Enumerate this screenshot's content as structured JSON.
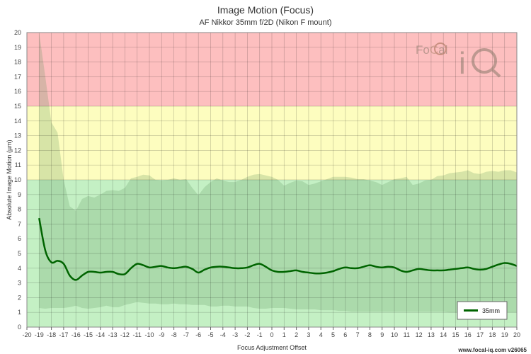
{
  "chart_data": {
    "type": "line",
    "title": "Image Motion (Focus)",
    "subtitle": "AF Nikkor 35mm f/2D (Nikon F mount)",
    "xlabel": "Focus Adjustment Offset",
    "ylabel": "Absolute Image Motion (µm)",
    "xlim": [
      -20,
      20
    ],
    "ylim": [
      0,
      20
    ],
    "grid": true,
    "legend_position": "bottom-right",
    "zones": [
      {
        "from": 0,
        "to": 10,
        "color": "#c4f0c4"
      },
      {
        "from": 10,
        "to": 15,
        "color": "#fdfdbf"
      },
      {
        "from": 15,
        "to": 20,
        "color": "#fdbfbf"
      }
    ],
    "x_ticks": [
      -20,
      -19,
      -18,
      -17,
      -16,
      -15,
      -14,
      -13,
      -12,
      -11,
      -10,
      -9,
      -8,
      -7,
      -6,
      -5,
      -4,
      -3,
      -2,
      -1,
      0,
      1,
      2,
      3,
      4,
      5,
      6,
      7,
      8,
      9,
      10,
      11,
      12,
      13,
      14,
      15,
      16,
      17,
      18,
      19,
      20
    ],
    "y_ticks": [
      0,
      1,
      2,
      3,
      4,
      5,
      6,
      7,
      8,
      9,
      10,
      11,
      12,
      13,
      14,
      15,
      16,
      17,
      18,
      19,
      20
    ],
    "series": [
      {
        "name": "35mm",
        "color": "#006400",
        "x": [
          -19,
          -18.5,
          -18,
          -17.5,
          -17,
          -16.5,
          -16,
          -15.5,
          -15,
          -14.5,
          -14,
          -13.5,
          -13,
          -12.5,
          -12,
          -11.5,
          -11,
          -10.5,
          -10,
          -9.5,
          -9,
          -8.5,
          -8,
          -7.5,
          -7,
          -6.5,
          -6,
          -5.5,
          -5,
          -4.5,
          -4,
          -3.5,
          -3,
          -2.5,
          -2,
          -1.5,
          -1,
          -0.5,
          0,
          0.5,
          1,
          1.5,
          2,
          2.5,
          3,
          3.5,
          4,
          4.5,
          5,
          5.5,
          6,
          6.5,
          7,
          7.5,
          8,
          8.5,
          9,
          9.5,
          10,
          10.5,
          11,
          11.5,
          12,
          12.5,
          13,
          13.5,
          14,
          14.5,
          15,
          15.5,
          16,
          16.5,
          17,
          17.5,
          18,
          18.5,
          19,
          19.5,
          20
        ],
        "values": [
          7.4,
          5.2,
          4.4,
          4.5,
          4.3,
          3.5,
          3.2,
          3.5,
          3.75,
          3.75,
          3.7,
          3.75,
          3.75,
          3.6,
          3.6,
          4.0,
          4.3,
          4.2,
          4.05,
          4.1,
          4.15,
          4.05,
          4.0,
          4.05,
          4.1,
          3.95,
          3.7,
          3.9,
          4.05,
          4.1,
          4.1,
          4.05,
          4.0,
          4.0,
          4.05,
          4.2,
          4.3,
          4.1,
          3.85,
          3.75,
          3.75,
          3.8,
          3.85,
          3.75,
          3.7,
          3.65,
          3.65,
          3.7,
          3.8,
          3.95,
          4.05,
          4.0,
          4.0,
          4.1,
          4.2,
          4.1,
          4.05,
          4.1,
          4.05,
          3.85,
          3.75,
          3.85,
          3.95,
          3.9,
          3.85,
          3.85,
          3.85,
          3.9,
          3.95,
          4.0,
          4.05,
          3.95,
          3.9,
          3.95,
          4.1,
          4.25,
          4.35,
          4.3,
          4.15
        ],
        "band_upper": [
          20,
          17,
          13.9,
          13.2,
          10,
          8.2,
          7.9,
          8.7,
          8.9,
          8.8,
          9.0,
          9.25,
          9.3,
          9.25,
          9.45,
          10.1,
          10.2,
          10.35,
          10.3,
          10.0,
          9.95,
          10.0,
          10.1,
          10.0,
          10.05,
          9.45,
          8.95,
          9.5,
          9.85,
          10.1,
          9.95,
          9.85,
          9.85,
          10.0,
          10.2,
          10.35,
          10.4,
          10.3,
          10.2,
          10.0,
          9.6,
          9.8,
          9.95,
          9.9,
          9.65,
          9.75,
          9.9,
          10.05,
          10.2,
          10.2,
          10.2,
          10.15,
          10.05,
          10.05,
          9.95,
          9.85,
          9.65,
          9.85,
          10.05,
          10.1,
          10.2,
          9.65,
          9.75,
          9.95,
          10.0,
          10.25,
          10.3,
          10.45,
          10.5,
          10.55,
          10.65,
          10.45,
          10.4,
          10.55,
          10.6,
          10.55,
          10.65,
          10.65,
          10.5
        ],
        "band_lower": [
          1.3,
          1.25,
          1.3,
          1.3,
          1.3,
          1.35,
          1.45,
          1.3,
          1.25,
          1.3,
          1.35,
          1.45,
          1.35,
          1.35,
          1.5,
          1.6,
          1.7,
          1.65,
          1.6,
          1.6,
          1.55,
          1.55,
          1.6,
          1.55,
          1.55,
          1.5,
          1.5,
          1.5,
          1.4,
          1.4,
          1.45,
          1.45,
          1.4,
          1.4,
          1.4,
          1.3,
          1.25,
          1.25,
          1.3,
          1.3,
          1.3,
          1.25,
          1.2,
          1.2,
          1.2,
          1.2,
          1.15,
          1.15,
          1.15,
          1.1,
          1.1,
          1.05,
          1.05,
          1.05,
          1.05,
          1.05,
          1.05,
          1.05,
          1.05,
          1.05,
          1.05,
          1.05,
          1.05,
          1.05,
          1.05,
          1.05,
          1.05,
          1.0,
          1.0,
          1.0,
          1.0,
          1.0,
          1.0,
          1.0,
          1.0,
          1.0,
          1.0,
          1.0,
          1.0
        ]
      }
    ]
  },
  "footer": "www.focal-iq.com  v26065",
  "logo": {
    "text_top": "FoCal",
    "text_big": "iQ",
    "color": "#9a8878"
  }
}
